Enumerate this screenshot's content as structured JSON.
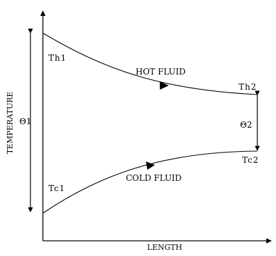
{
  "diagram": {
    "axes": {
      "x_label": "LENGTH",
      "y_label": "TEMPERATURE"
    },
    "hot_fluid": {
      "label": "HOT FLUID",
      "inlet_label": "Th1",
      "outlet_label": "Th2"
    },
    "cold_fluid": {
      "label": "COLD FLUID",
      "inlet_label": "Tc1",
      "outlet_label": "Tc2"
    },
    "temperature_differences": {
      "inlet": "Θ1",
      "outlet": "Θ2"
    },
    "colors": {
      "line": "#000000",
      "background": "#ffffff"
    }
  }
}
